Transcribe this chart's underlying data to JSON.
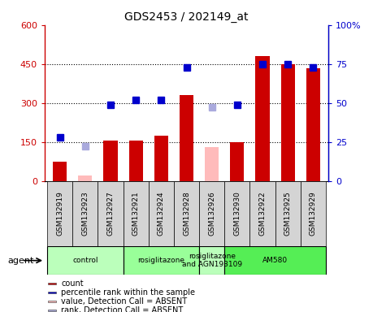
{
  "title": "GDS2453 / 202149_at",
  "samples": [
    "GSM132919",
    "GSM132923",
    "GSM132927",
    "GSM132921",
    "GSM132924",
    "GSM132928",
    "GSM132926",
    "GSM132930",
    "GSM132922",
    "GSM132925",
    "GSM132929"
  ],
  "count_present": [
    75,
    null,
    155,
    155,
    175,
    330,
    null,
    150,
    480,
    450,
    435
  ],
  "count_absent": [
    null,
    20,
    null,
    null,
    null,
    null,
    130,
    null,
    null,
    null,
    null
  ],
  "rank_present": [
    28,
    null,
    49,
    52,
    52,
    73,
    null,
    49,
    75,
    75,
    73
  ],
  "rank_absent": [
    null,
    22,
    null,
    null,
    null,
    null,
    47,
    null,
    null,
    null,
    null
  ],
  "ylim_left": [
    0,
    600
  ],
  "ylim_right": [
    0,
    100
  ],
  "yticks_left": [
    0,
    150,
    300,
    450,
    600
  ],
  "yticks_right": [
    0,
    25,
    50,
    75,
    100
  ],
  "ytick_labels_left": [
    "0",
    "150",
    "300",
    "450",
    "600"
  ],
  "ytick_labels_right": [
    "0",
    "25",
    "50",
    "75",
    "100%"
  ],
  "agent_groups": [
    {
      "label": "control",
      "start": 0,
      "end": 3,
      "color": "#bbffbb"
    },
    {
      "label": "rosiglitazone",
      "start": 3,
      "end": 6,
      "color": "#99ff99"
    },
    {
      "label": "rosiglitazone\nand AGN193109",
      "start": 6,
      "end": 7,
      "color": "#bbffbb"
    },
    {
      "label": "AM580",
      "start": 7,
      "end": 11,
      "color": "#55ee55"
    }
  ],
  "bar_color_present": "#cc0000",
  "bar_color_absent": "#ffbbbb",
  "rank_color_present": "#0000cc",
  "rank_color_absent": "#aaaadd",
  "bar_width": 0.55,
  "marker_size": 6,
  "left_axis_color": "#cc0000",
  "right_axis_color": "#0000cc",
  "agent_label": "agent",
  "legend": [
    {
      "label": "count",
      "color": "#cc0000"
    },
    {
      "label": "percentile rank within the sample",
      "color": "#0000cc"
    },
    {
      "label": "value, Detection Call = ABSENT",
      "color": "#ffbbbb"
    },
    {
      "label": "rank, Detection Call = ABSENT",
      "color": "#aaaadd"
    }
  ]
}
